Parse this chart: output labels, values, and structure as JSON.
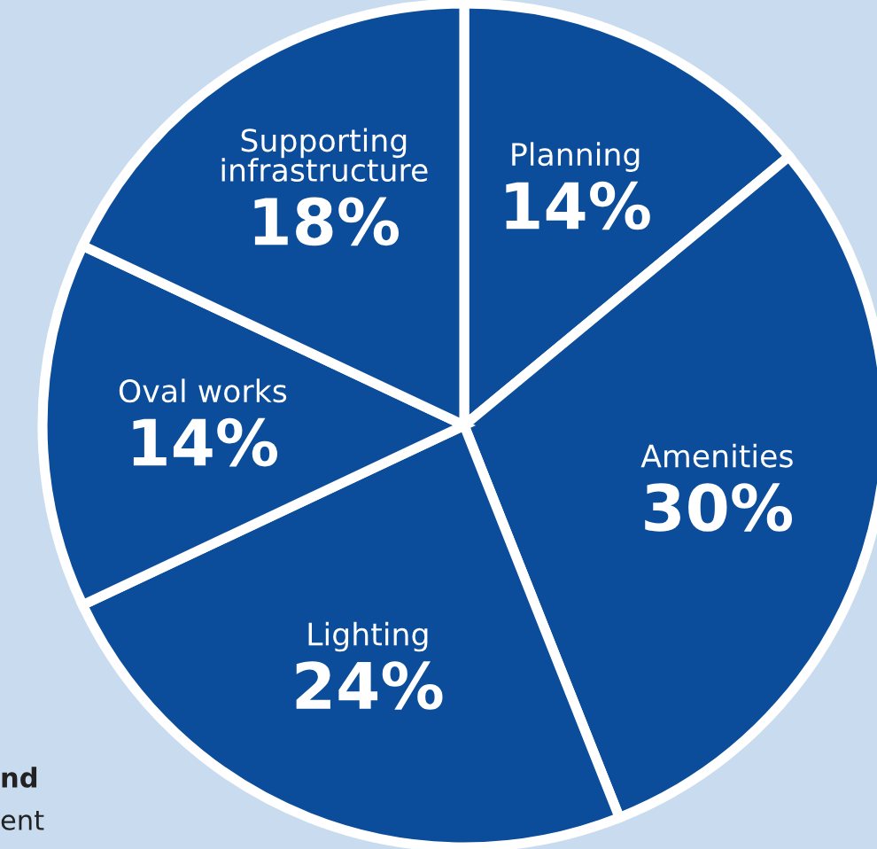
{
  "chart_data": {
    "type": "pie",
    "categories": [
      "Planning",
      "Amenities",
      "Lighting",
      "Oval works",
      "Supporting\ninfrastructure"
    ],
    "values": [
      14,
      30,
      24,
      14,
      18
    ],
    "value_labels": [
      "14%",
      "30%",
      "24%",
      "14%",
      "18%"
    ],
    "colors": [
      "#0b4d9b",
      "#0b4d9b",
      "#0b4d9b",
      "#0b4d9b",
      "#0b4d9b"
    ],
    "annotations": [
      "nd",
      "ent"
    ],
    "legend": false
  }
}
